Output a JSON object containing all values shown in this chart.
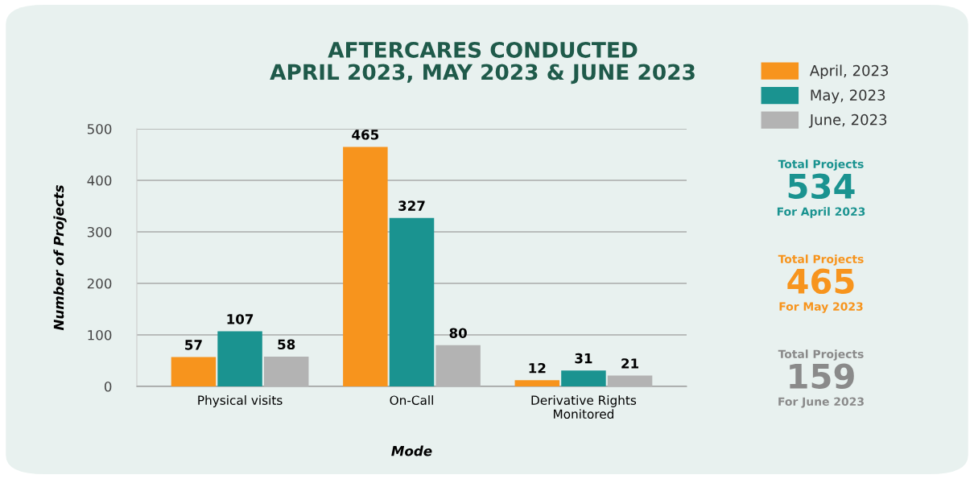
{
  "chart_data": {
    "type": "bar",
    "title": "AFTERCARES CONDUCTED\nAPRIL 2023, MAY 2023 & JUNE 2023",
    "xlabel": "Mode",
    "ylabel": "Number of Projects",
    "categories": [
      "Physical visits",
      "On-Call",
      "Derivative Rights\nMonitored"
    ],
    "series": [
      {
        "name": "April, 2023",
        "color": "#f7941d",
        "values": [
          57,
          465,
          12
        ]
      },
      {
        "name": "May, 2023",
        "color": "#1a9390",
        "values": [
          107,
          327,
          31
        ]
      },
      {
        "name": "June, 2023",
        "color": "#b3b3b3",
        "values": [
          58,
          80,
          21
        ]
      }
    ],
    "ylim": [
      0,
      500
    ],
    "yticks": [
      0,
      100,
      200,
      300,
      400,
      500
    ],
    "grid": "y",
    "legend": "top right",
    "data_labels": true,
    "annotations": [
      "Total Projects",
      "534",
      "For April 2023",
      "Total Projects",
      "465",
      "For May 2023",
      "Total Projects",
      "159",
      "For June 2023"
    ]
  }
}
